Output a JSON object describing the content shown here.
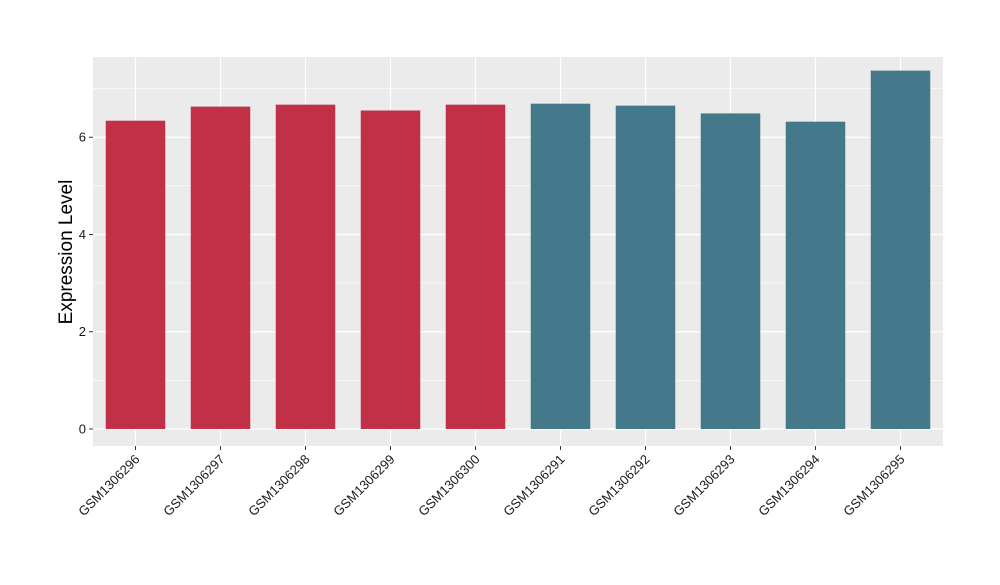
{
  "chart_data": {
    "type": "bar",
    "title": "",
    "xlabel": "",
    "ylabel": "Expression Level",
    "categories": [
      "GSM1306296",
      "GSM1306297",
      "GSM1306298",
      "GSM1306299",
      "GSM1306300",
      "GSM1306291",
      "GSM1306292",
      "GSM1306293",
      "GSM1306294",
      "GSM1306295"
    ],
    "values": [
      6.34,
      6.63,
      6.67,
      6.55,
      6.67,
      6.69,
      6.65,
      6.49,
      6.32,
      7.37
    ],
    "bar_colors": [
      "#c23047",
      "#c23047",
      "#c23047",
      "#c23047",
      "#c23047",
      "#43798a",
      "#43798a",
      "#43798a",
      "#43798a",
      "#43798a"
    ],
    "ylim": [
      -0.35,
      7.65
    ],
    "yticks": [
      0,
      2,
      4,
      6
    ],
    "grid": true,
    "legend": "none",
    "panel_background": "#ebebeb",
    "gridline_color": "#ffffff"
  }
}
